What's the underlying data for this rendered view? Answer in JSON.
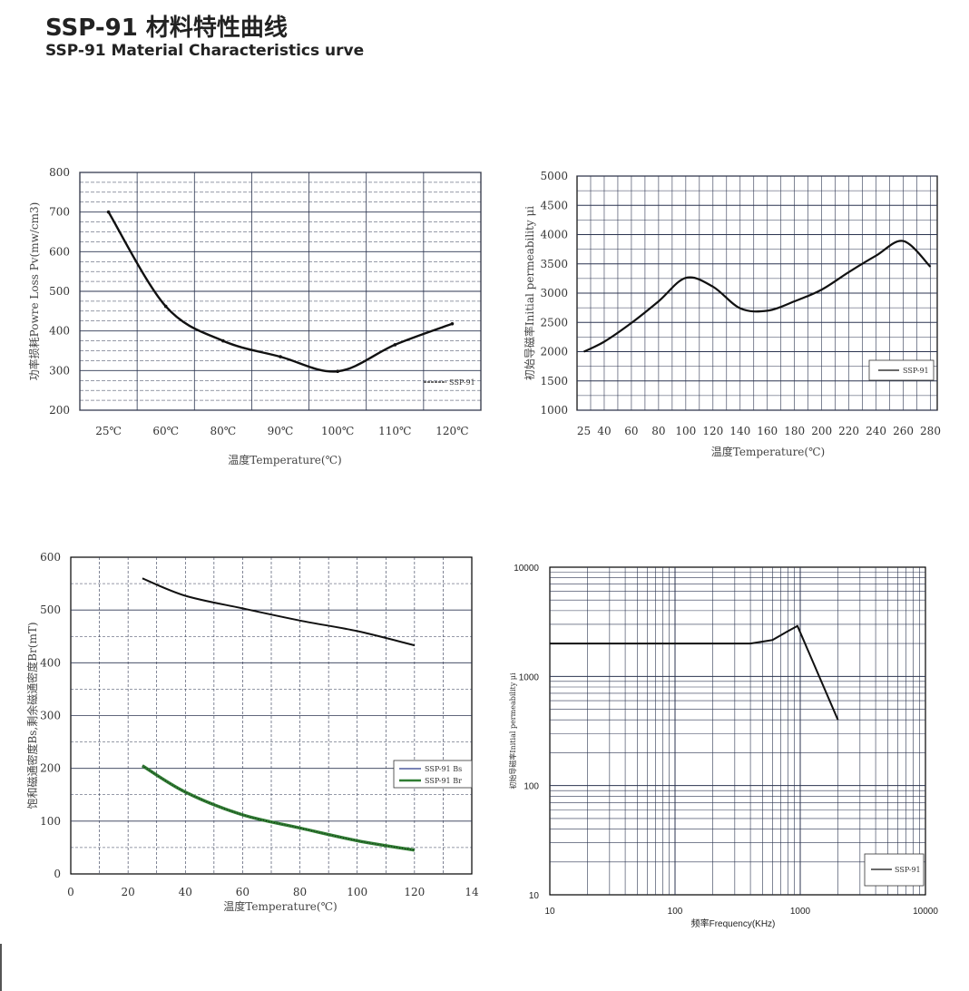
{
  "title_zh": "SSP-91 材料特性曲线",
  "title_en": "SSP-91 Material Characteristics urve",
  "chart_data": [
    {
      "type": "line",
      "xlabel": "温度Temperature(℃)",
      "ylabel": "功率损耗Powre Loss Pv(mw/cm3)",
      "categories": [
        "25℃",
        "60℃",
        "80℃",
        "90℃",
        "100℃",
        "110℃",
        "120℃"
      ],
      "ylim": [
        200,
        800
      ],
      "yticks": [
        200,
        300,
        400,
        500,
        600,
        700,
        800
      ],
      "series": [
        {
          "name": "SSP-91",
          "values": [
            700,
            462,
            375,
            335,
            298,
            365,
            418
          ]
        }
      ],
      "legend": "lower-right",
      "grid": true
    },
    {
      "type": "line",
      "xlabel": "温度Temperature(℃)",
      "ylabel": "初始导磁率Initial permeability μi",
      "x": [
        25,
        40,
        60,
        80,
        100,
        120,
        140,
        160,
        180,
        200,
        220,
        240,
        260,
        280
      ],
      "xlim": [
        20,
        285
      ],
      "ylim": [
        1000,
        5000
      ],
      "yticks": [
        1000,
        1500,
        2000,
        2500,
        3000,
        3500,
        4000,
        4500,
        5000
      ],
      "series": [
        {
          "name": "SSP-91",
          "values": [
            2000,
            2170,
            2490,
            2860,
            3260,
            3110,
            2740,
            2700,
            2860,
            3060,
            3360,
            3640,
            3890,
            3450
          ]
        }
      ],
      "legend": "lower-right",
      "grid": true
    },
    {
      "type": "line",
      "xlabel": "温度Temperature(℃)",
      "ylabel": "饱和磁通密度Bs,剩余磁通密度Br(mT)",
      "xlim": [
        0,
        140
      ],
      "xticks": [
        "0",
        "20",
        "40",
        "60",
        "80",
        "100",
        "120",
        "14"
      ],
      "ylim": [
        0,
        600
      ],
      "yticks": [
        0,
        100,
        200,
        300,
        400,
        500,
        600
      ],
      "x": [
        25,
        40,
        60,
        80,
        100,
        120
      ],
      "series": [
        {
          "name": "SSP-91 Bs",
          "values": [
            560,
            527,
            503,
            480,
            460,
            433
          ]
        },
        {
          "name": "SSP-91 Br",
          "values": [
            205,
            155,
            112,
            87,
            63,
            45
          ]
        }
      ],
      "legend": "right",
      "grid": true
    },
    {
      "type": "line",
      "xlabel": "频率Frequency(KHz)",
      "ylabel": "初始导磁率Initial permeability μi",
      "xscale": "log",
      "yscale": "log",
      "xlim": [
        10,
        10000
      ],
      "ylim": [
        10,
        10000
      ],
      "xticks": [
        "10",
        "100",
        "1000",
        "10000"
      ],
      "yticks": [
        "10",
        "100",
        "1000",
        "10000"
      ],
      "x": [
        10,
        100,
        400,
        600,
        800,
        950,
        2000
      ],
      "series": [
        {
          "name": "SSP-91",
          "values": [
            2000,
            2000,
            2000,
            2150,
            2600,
            2900,
            400
          ]
        }
      ],
      "legend": "lower-right",
      "grid": true
    }
  ]
}
